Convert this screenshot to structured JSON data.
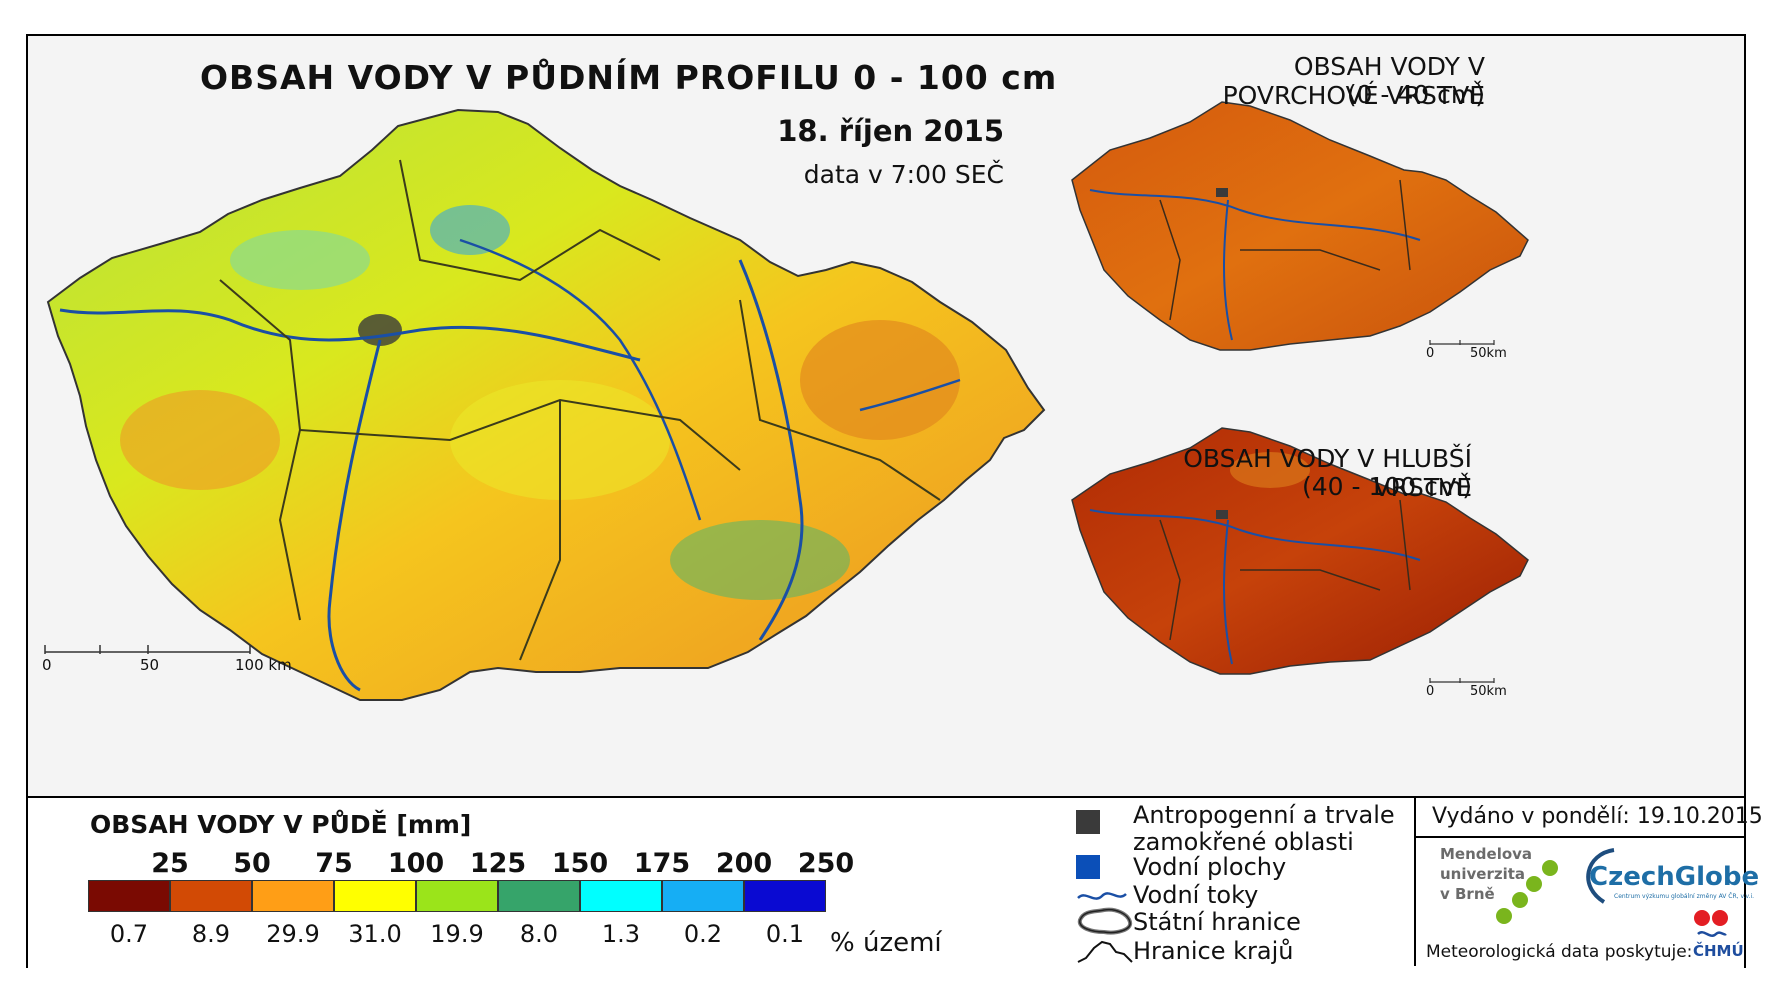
{
  "main_map": {
    "title": "OBSAH VODY V PŮDNÍM PROFILU 0 - 100 cm",
    "date": "18. říjen 2015",
    "time_note": "data v 7:00 SEČ",
    "scale_labels": [
      "0",
      "50",
      "100 km"
    ]
  },
  "inset_top": {
    "title_line1": "OBSAH VODY V POVRCHOVÉ VRSTVĚ",
    "title_line2": "(0 - 40 cm)",
    "scale_labels": [
      "0",
      "50km"
    ]
  },
  "inset_bottom": {
    "title_line1": "OBSAH VODY V HLUBŠÍ VRSTVĚ",
    "title_line2": "(40 - 100 cm)",
    "scale_labels": [
      "0",
      "50km"
    ]
  },
  "legend": {
    "title": "OBSAH VODY V PŮDĚ [mm]",
    "bounds": [
      "25",
      "50",
      "75",
      "100",
      "125",
      "150",
      "175",
      "200",
      "250"
    ],
    "classes": [
      {
        "color": "#7a0a02",
        "percent": "0.7"
      },
      {
        "color": "#d24a05",
        "percent": "8.9"
      },
      {
        "color": "#ff9e16",
        "percent": "29.9"
      },
      {
        "color": "#ffff00",
        "percent": "31.0"
      },
      {
        "color": "#9be41a",
        "percent": "19.9"
      },
      {
        "color": "#36a46a",
        "percent": "8.0"
      },
      {
        "color": "#00ffff",
        "percent": "1.3"
      },
      {
        "color": "#16aef4",
        "percent": "0.2"
      },
      {
        "color": "#0a0ad2",
        "percent": "0.1"
      }
    ],
    "unit": "% území"
  },
  "symbols": {
    "anthropogenic_line1": "Antropogenní a trvale",
    "anthropogenic_line2": "zamokřené oblasti",
    "water_areas": "Vodní plochy",
    "rivers": "Vodní toky",
    "state_border": "Státní hranice",
    "region_border": "Hranice krajů",
    "anthropogenic_color": "#3a3a3a",
    "water_color": "#0b4fb8",
    "river_color": "#1a4fa5"
  },
  "credits": {
    "issued": "Vydáno v pondělí: 19.10.2015",
    "mendel_line1": "Mendelova",
    "mendel_line2": "univerzita",
    "mendel_line3": "v Brně",
    "czechglobe": "CzechGlobe",
    "czechglobe_sub": "Centrum výzkumu globální změny AV ČR, v.v.i.",
    "meteo": "Meteorologická data poskytuje:",
    "chmu": "ČHMÚ"
  }
}
